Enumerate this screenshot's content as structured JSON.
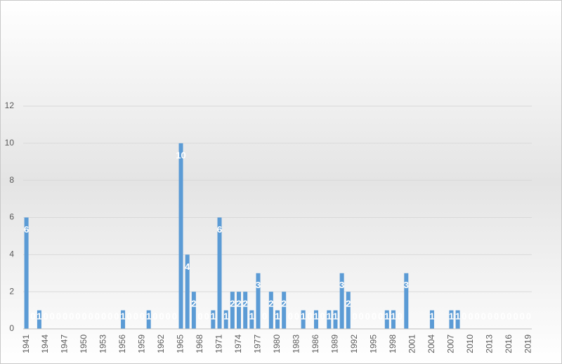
{
  "chart_data": {
    "type": "bar",
    "categories": [
      "1941",
      null,
      null,
      "1944",
      null,
      null,
      "1947",
      null,
      null,
      "1950",
      null,
      null,
      "1953",
      null,
      null,
      "1956",
      null,
      null,
      "1959",
      null,
      null,
      "1962",
      null,
      null,
      "1965",
      null,
      null,
      "1968",
      null,
      null,
      "1971",
      null,
      null,
      "1974",
      null,
      null,
      "1977",
      null,
      null,
      "1980",
      null,
      null,
      "1983",
      null,
      null,
      "1986",
      null,
      null,
      "1989",
      null,
      null,
      "1992",
      null,
      null,
      "1995",
      null,
      null,
      "1998",
      null,
      null,
      "2001",
      null,
      null,
      "2004",
      null,
      null,
      "2007",
      null,
      null,
      "2010",
      null,
      null,
      "2013",
      null,
      null,
      "2016",
      null,
      null,
      "2019"
    ],
    "values": [
      6,
      0,
      1,
      0,
      0,
      0,
      0,
      0,
      0,
      0,
      0,
      0,
      0,
      0,
      0,
      1,
      0,
      0,
      0,
      1,
      0,
      0,
      0,
      0,
      10,
      4,
      2,
      0,
      0,
      1,
      6,
      1,
      2,
      2,
      2,
      1,
      3,
      0,
      2,
      1,
      2,
      0,
      0,
      1,
      0,
      1,
      0,
      1,
      1,
      3,
      2,
      0,
      0,
      0,
      0,
      0,
      1,
      1,
      0,
      3,
      null,
      null,
      null,
      1,
      null,
      null,
      1,
      1,
      0,
      0,
      0,
      0,
      0,
      0,
      0,
      0,
      0,
      0,
      0
    ],
    "color": "#5b9bd5",
    "ylim": [
      0,
      12
    ],
    "yticks": [
      0,
      2,
      4,
      6,
      8,
      10,
      12
    ],
    "grid": true
  }
}
